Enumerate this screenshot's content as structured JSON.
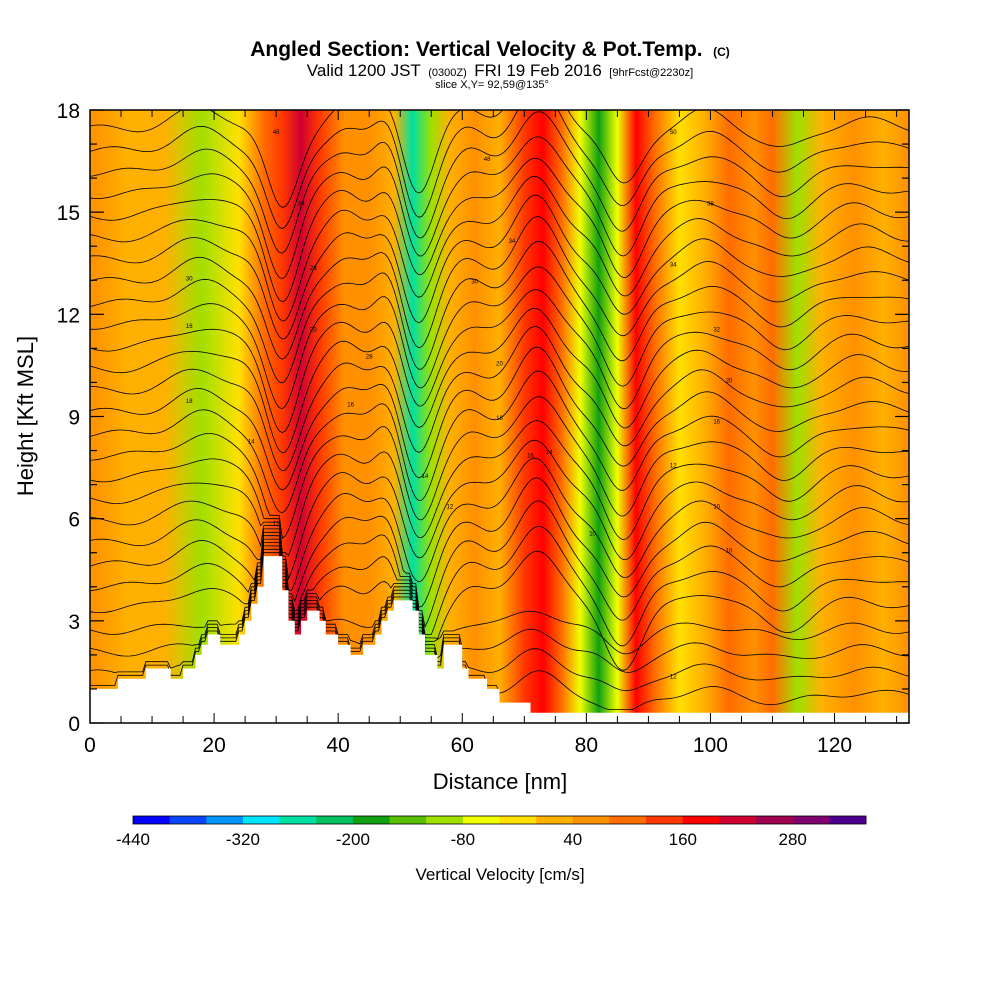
{
  "title": {
    "main": "Angled Section: Vertical Velocity & Pot.Temp.",
    "main_suffix": "(C)",
    "valid_a": "Valid 1200 JST",
    "valid_b": "(0300Z)",
    "valid_c": "FRI 19 Feb 2016",
    "valid_d": "[9hrFcst@2230z]",
    "slice": "slice X,Y= 92,59@135°"
  },
  "chart_data": {
    "type": "heatmap",
    "xlabel": "Distance [nm]",
    "ylabel": "Height [Kft MSL]",
    "xlim": [
      0,
      132
    ],
    "ylim": [
      0,
      18
    ],
    "x_ticks": [
      "0",
      "20",
      "40",
      "60",
      "80",
      "100",
      "120"
    ],
    "y_ticks": [
      "0",
      "3",
      "6",
      "9",
      "12",
      "15",
      "18"
    ],
    "velocity_columns": [
      {
        "x": 0,
        "v": 40
      },
      {
        "x": 6,
        "v": 20
      },
      {
        "x": 12,
        "v": 0
      },
      {
        "x": 18,
        "v": -90
      },
      {
        "x": 24,
        "v": -40
      },
      {
        "x": 28,
        "v": 80
      },
      {
        "x": 31,
        "v": 150
      },
      {
        "x": 34,
        "v": 220
      },
      {
        "x": 37,
        "v": 120
      },
      {
        "x": 41,
        "v": 50
      },
      {
        "x": 45,
        "v": 70
      },
      {
        "x": 49,
        "v": 20
      },
      {
        "x": 52,
        "v": -260
      },
      {
        "x": 55,
        "v": -100
      },
      {
        "x": 58,
        "v": 30
      },
      {
        "x": 62,
        "v": 60
      },
      {
        "x": 66,
        "v": 0
      },
      {
        "x": 70,
        "v": 120
      },
      {
        "x": 73,
        "v": 180
      },
      {
        "x": 76,
        "v": 80
      },
      {
        "x": 79,
        "v": -60
      },
      {
        "x": 82,
        "v": -180
      },
      {
        "x": 85,
        "v": -80
      },
      {
        "x": 88,
        "v": 170
      },
      {
        "x": 91,
        "v": 110
      },
      {
        "x": 95,
        "v": -40
      },
      {
        "x": 99,
        "v": 30
      },
      {
        "x": 103,
        "v": 80
      },
      {
        "x": 107,
        "v": 40
      },
      {
        "x": 110,
        "v": 90
      },
      {
        "x": 114,
        "v": -100
      },
      {
        "x": 118,
        "v": 30
      },
      {
        "x": 123,
        "v": 60
      },
      {
        "x": 128,
        "v": 0
      },
      {
        "x": 132,
        "v": 50
      }
    ],
    "terrain": [
      {
        "x": 0,
        "h": 1.0
      },
      {
        "x": 4.5,
        "h": 1.0
      },
      {
        "x": 4.5,
        "h": 1.3
      },
      {
        "x": 9,
        "h": 1.3
      },
      {
        "x": 9,
        "h": 1.6
      },
      {
        "x": 13,
        "h": 1.6
      },
      {
        "x": 13,
        "h": 1.3
      },
      {
        "x": 15,
        "h": 1.3
      },
      {
        "x": 15,
        "h": 1.6
      },
      {
        "x": 17,
        "h": 1.6
      },
      {
        "x": 17,
        "h": 2.0
      },
      {
        "x": 18,
        "h": 2.0
      },
      {
        "x": 18,
        "h": 2.3
      },
      {
        "x": 19,
        "h": 2.3
      },
      {
        "x": 19,
        "h": 2.6
      },
      {
        "x": 21,
        "h": 2.6
      },
      {
        "x": 21,
        "h": 2.3
      },
      {
        "x": 24,
        "h": 2.3
      },
      {
        "x": 24,
        "h": 2.6
      },
      {
        "x": 25,
        "h": 2.6
      },
      {
        "x": 25,
        "h": 3.0
      },
      {
        "x": 26,
        "h": 3.0
      },
      {
        "x": 26,
        "h": 3.5
      },
      {
        "x": 27,
        "h": 3.5
      },
      {
        "x": 27,
        "h": 4.0
      },
      {
        "x": 28,
        "h": 4.0
      },
      {
        "x": 28,
        "h": 4.9
      },
      {
        "x": 31,
        "h": 4.9
      },
      {
        "x": 31,
        "h": 3.9
      },
      {
        "x": 32,
        "h": 3.9
      },
      {
        "x": 32,
        "h": 3.0
      },
      {
        "x": 33,
        "h": 3.0
      },
      {
        "x": 33,
        "h": 2.6
      },
      {
        "x": 34,
        "h": 2.6
      },
      {
        "x": 34,
        "h": 3.0
      },
      {
        "x": 35,
        "h": 3.0
      },
      {
        "x": 35,
        "h": 3.3
      },
      {
        "x": 37,
        "h": 3.3
      },
      {
        "x": 37,
        "h": 3.0
      },
      {
        "x": 38,
        "h": 3.0
      },
      {
        "x": 38,
        "h": 2.6
      },
      {
        "x": 40,
        "h": 2.6
      },
      {
        "x": 40,
        "h": 2.3
      },
      {
        "x": 42,
        "h": 2.3
      },
      {
        "x": 42,
        "h": 2.0
      },
      {
        "x": 44,
        "h": 2.0
      },
      {
        "x": 44,
        "h": 2.3
      },
      {
        "x": 46,
        "h": 2.3
      },
      {
        "x": 46,
        "h": 2.6
      },
      {
        "x": 47,
        "h": 2.6
      },
      {
        "x": 47,
        "h": 3.0
      },
      {
        "x": 48,
        "h": 3.0
      },
      {
        "x": 48,
        "h": 3.3
      },
      {
        "x": 49,
        "h": 3.3
      },
      {
        "x": 49,
        "h": 3.6
      },
      {
        "x": 52,
        "h": 3.6
      },
      {
        "x": 52,
        "h": 3.3
      },
      {
        "x": 53,
        "h": 3.3
      },
      {
        "x": 53,
        "h": 2.6
      },
      {
        "x": 54,
        "h": 2.6
      },
      {
        "x": 54,
        "h": 2.0
      },
      {
        "x": 56,
        "h": 2.0
      },
      {
        "x": 56,
        "h": 1.6
      },
      {
        "x": 57,
        "h": 1.6
      },
      {
        "x": 57,
        "h": 2.3
      },
      {
        "x": 60,
        "h": 2.3
      },
      {
        "x": 60,
        "h": 1.6
      },
      {
        "x": 61,
        "h": 1.6
      },
      {
        "x": 61,
        "h": 1.3
      },
      {
        "x": 64,
        "h": 1.3
      },
      {
        "x": 64,
        "h": 1.0
      },
      {
        "x": 66,
        "h": 1.0
      },
      {
        "x": 66,
        "h": 0.6
      },
      {
        "x": 71,
        "h": 0.6
      },
      {
        "x": 71,
        "h": 0.3
      },
      {
        "x": 132,
        "h": 0.3
      }
    ],
    "isentropes": {
      "count": 27,
      "base": 0.8,
      "spacing": 0.64,
      "waves": [
        {
          "x": 18,
          "amp": 0.6,
          "w": 6
        },
        {
          "x": 31,
          "amp": -2.4,
          "w": 3.5
        },
        {
          "x": 41,
          "amp": 0.7,
          "w": 4
        },
        {
          "x": 48,
          "amp": 0.9,
          "w": 3
        },
        {
          "x": 53,
          "amp": -1.9,
          "w": 3.5
        },
        {
          "x": 61,
          "amp": 0.6,
          "w": 4
        },
        {
          "x": 72,
          "amp": 1.8,
          "w": 5
        },
        {
          "x": 86,
          "amp": -1.7,
          "w": 4
        },
        {
          "x": 99,
          "amp": 0.5,
          "w": 5
        },
        {
          "x": 112,
          "amp": -0.6,
          "w": 5
        },
        {
          "x": 124,
          "amp": 0.3,
          "w": 5
        }
      ]
    },
    "contour_labels": [
      {
        "text": "48",
        "x": 30,
        "y": 17.3
      },
      {
        "text": "48",
        "x": 64,
        "y": 16.5
      },
      {
        "text": "50",
        "x": 94,
        "y": 17.3
      },
      {
        "text": "34",
        "x": 34,
        "y": 15.2
      },
      {
        "text": "38",
        "x": 100,
        "y": 15.2
      },
      {
        "text": "28",
        "x": 36,
        "y": 13.3
      },
      {
        "text": "34",
        "x": 68,
        "y": 14.1
      },
      {
        "text": "34",
        "x": 94,
        "y": 13.4
      },
      {
        "text": "30",
        "x": 16,
        "y": 13.0
      },
      {
        "text": "30",
        "x": 62,
        "y": 12.9
      },
      {
        "text": "16",
        "x": 16,
        "y": 11.6
      },
      {
        "text": "20",
        "x": 36,
        "y": 11.5
      },
      {
        "text": "32",
        "x": 101,
        "y": 11.5
      },
      {
        "text": "28",
        "x": 45,
        "y": 10.7
      },
      {
        "text": "20",
        "x": 66,
        "y": 10.5
      },
      {
        "text": "20",
        "x": 103,
        "y": 10.0
      },
      {
        "text": "18",
        "x": 16,
        "y": 9.4
      },
      {
        "text": "16",
        "x": 42,
        "y": 9.3
      },
      {
        "text": "18",
        "x": 66,
        "y": 8.9
      },
      {
        "text": "16",
        "x": 101,
        "y": 8.8
      },
      {
        "text": "14",
        "x": 26,
        "y": 8.2
      },
      {
        "text": "14",
        "x": 74,
        "y": 7.9
      },
      {
        "text": "16",
        "x": 71,
        "y": 7.8
      },
      {
        "text": "12",
        "x": 94,
        "y": 7.5
      },
      {
        "text": "14",
        "x": 54,
        "y": 7.2
      },
      {
        "text": "12",
        "x": 58,
        "y": 6.3
      },
      {
        "text": "10",
        "x": 101,
        "y": 6.3
      },
      {
        "text": "12",
        "x": 30,
        "y": 5.8
      },
      {
        "text": "10",
        "x": 81,
        "y": 5.5
      },
      {
        "text": "10",
        "x": 103,
        "y": 5.0
      },
      {
        "text": "12",
        "x": 94,
        "y": 1.3
      }
    ]
  },
  "colorbar": {
    "title": "Vertical Velocity [cm/s]",
    "min": -440,
    "step": 40,
    "labels": [
      "-440",
      "-320",
      "-200",
      "-80",
      "40",
      "160",
      "280"
    ],
    "colors": [
      "#0000ff",
      "#0a46ff",
      "#0094ff",
      "#00e6ff",
      "#00e0a0",
      "#00c060",
      "#10a010",
      "#58c000",
      "#a0e000",
      "#f0ff00",
      "#ffe000",
      "#ffb000",
      "#ff9000",
      "#ff6c00",
      "#ff3800",
      "#ff0000",
      "#d00030",
      "#a00050",
      "#800070",
      "#500090"
    ]
  }
}
